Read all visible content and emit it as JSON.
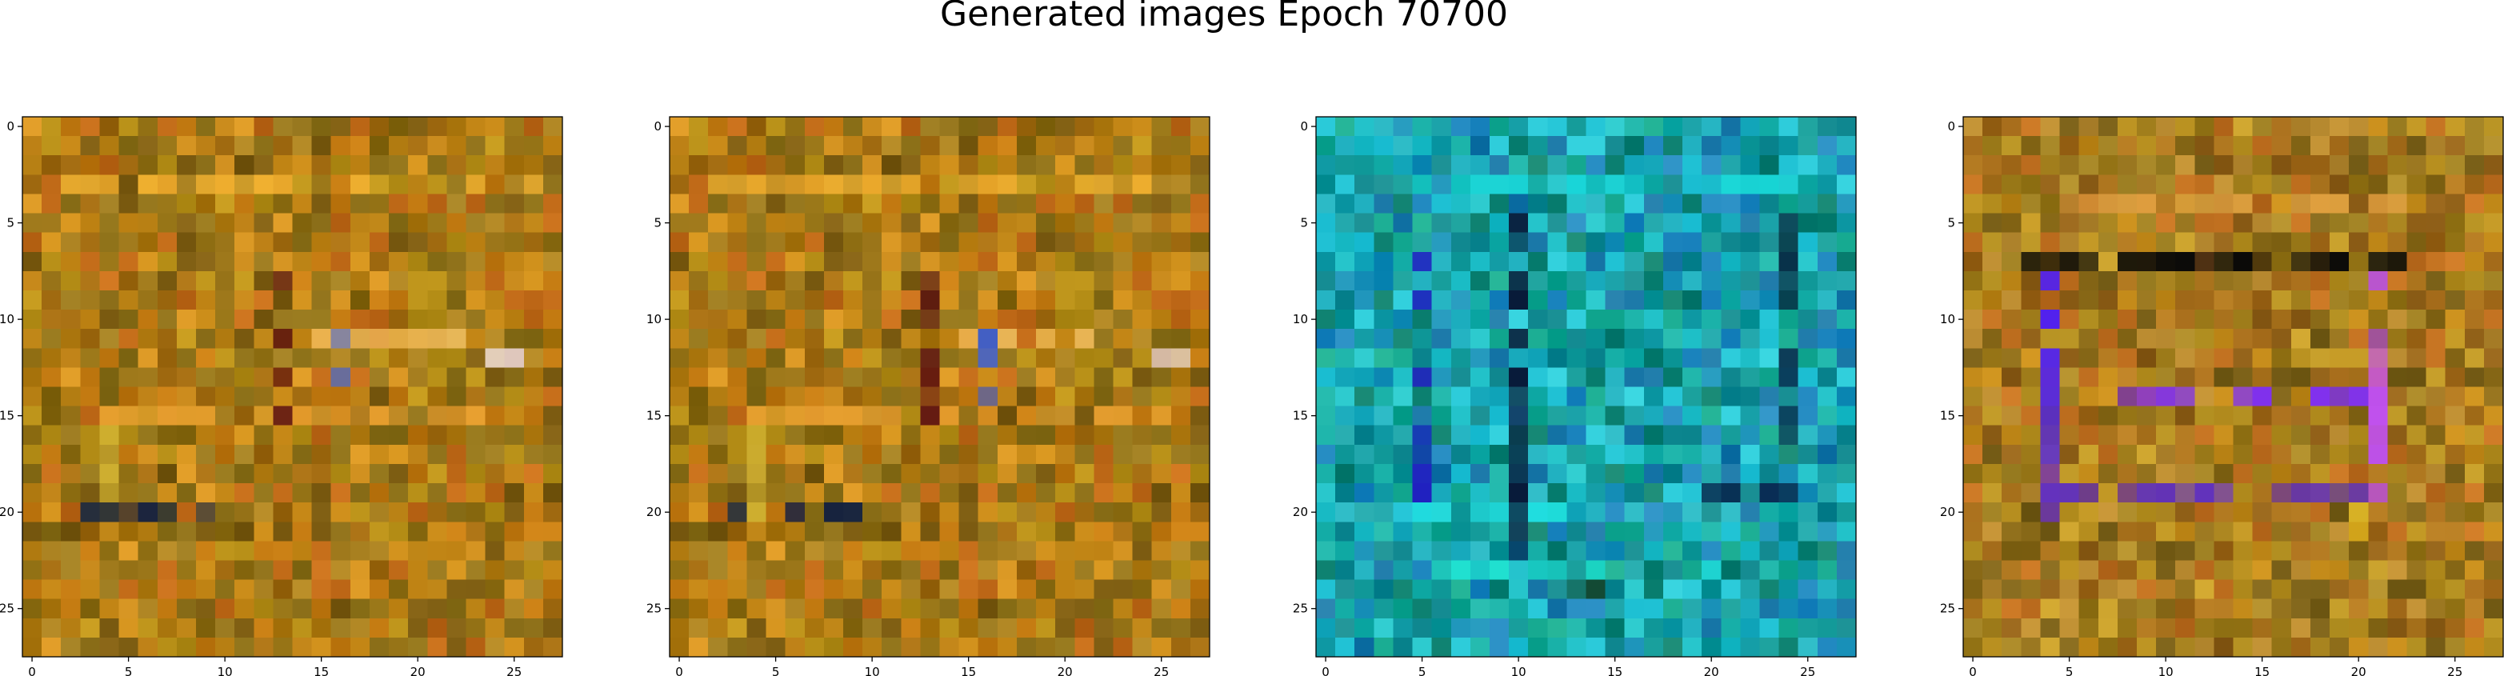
{
  "figure_title": "Generated images Epoch 70700",
  "chart_data": [
    {
      "type": "heatmap",
      "grid": [
        28,
        28
      ],
      "palette": "amber",
      "xticks": [
        0,
        5,
        10,
        15,
        20,
        25
      ],
      "yticks": [
        0,
        5,
        10,
        15,
        20,
        25
      ],
      "xlim": [
        -0.5,
        27.5
      ],
      "ylim": [
        27.5,
        -0.5
      ],
      "base_color": "#b57a10",
      "features": [
        {
          "row": 3,
          "cols": [
            2,
            26
          ],
          "color": "#f0b030"
        },
        {
          "row": 15,
          "cols": [
            4,
            25
          ],
          "color": "#e8a030"
        },
        {
          "row": 11,
          "cols": [
            15,
            22
          ],
          "color": "#f3c060"
        },
        {
          "col": 13,
          "rows": [
            8,
            15
          ],
          "color": "#5a1010"
        },
        {
          "col": 16,
          "rows": [
            11,
            14
          ],
          "color": "#4060d0"
        },
        {
          "col": 4,
          "rows": [
            16,
            20
          ],
          "color": "#d0b030"
        },
        {
          "row": 20,
          "cols": [
            3,
            9
          ],
          "color": "#102040"
        },
        {
          "row": 12,
          "cols": [
            24,
            25
          ],
          "color": "#f0e0e8"
        }
      ]
    },
    {
      "type": "heatmap",
      "grid": [
        28,
        28
      ],
      "palette": "amber",
      "xticks": [
        0,
        5,
        10,
        15,
        20,
        25
      ],
      "yticks": [
        0,
        5,
        10,
        15,
        20,
        25
      ],
      "xlim": [
        -0.5,
        27.5
      ],
      "ylim": [
        27.5,
        -0.5
      ],
      "base_color": "#b57a10",
      "features": [
        {
          "row": 3,
          "cols": [
            2,
            26
          ],
          "color": "#f0b030"
        },
        {
          "row": 15,
          "cols": [
            4,
            25
          ],
          "color": "#e8a030"
        },
        {
          "row": 11,
          "cols": [
            15,
            22
          ],
          "color": "#f3c060"
        },
        {
          "col": 13,
          "rows": [
            8,
            15
          ],
          "color": "#5a1010"
        },
        {
          "col": 16,
          "rows": [
            11,
            14
          ],
          "color": "#4060d0"
        },
        {
          "col": 4,
          "rows": [
            16,
            20
          ],
          "color": "#d0b030"
        },
        {
          "row": 20,
          "cols": [
            3,
            9
          ],
          "color": "#102040"
        },
        {
          "row": 12,
          "cols": [
            25,
            26
          ],
          "color": "#f0e0e8"
        }
      ]
    },
    {
      "type": "heatmap",
      "grid": [
        28,
        28
      ],
      "palette": "teal",
      "xticks": [
        0,
        5,
        10,
        15,
        20,
        25
      ],
      "yticks": [
        0,
        5,
        10,
        15,
        20,
        25
      ],
      "xlim": [
        -0.5,
        27.5
      ],
      "ylim": [
        27.5,
        -0.5
      ],
      "base_color": "#1a9aa0",
      "features": [
        {
          "row": 3,
          "cols": [
            5,
            24
          ],
          "color": "#18d8d8"
        },
        {
          "row": 20,
          "cols": [
            4,
            12
          ],
          "color": "#20e0e0"
        },
        {
          "row": 23,
          "cols": [
            6,
            20
          ],
          "color": "#20e0d0"
        },
        {
          "col": 10,
          "rows": [
            5,
            22
          ],
          "color": "#081838"
        },
        {
          "col": 5,
          "rows": [
            7,
            19
          ],
          "color": "#2020c0"
        },
        {
          "col": 24,
          "rows": [
            5,
            16
          ],
          "color": "#083048"
        },
        {
          "row": 19,
          "cols": [
            20,
            24
          ],
          "color": "#081848"
        },
        {
          "row": 24,
          "cols": [
            13,
            14
          ],
          "color": "#104020"
        }
      ]
    },
    {
      "type": "heatmap",
      "grid": [
        28,
        28
      ],
      "palette": "amber-violet",
      "xticks": [
        0,
        5,
        10,
        15,
        20,
        25
      ],
      "yticks": [
        0,
        5,
        10,
        15,
        20,
        25
      ],
      "xlim": [
        -0.5,
        27.5
      ],
      "ylim": [
        27.5,
        -0.5
      ],
      "base_color": "#b07820",
      "features": [
        {
          "row": 7,
          "cols": [
            3,
            22
          ],
          "color": "#080808"
        },
        {
          "row": 14,
          "cols": [
            8,
            20
          ],
          "color": "#8030f0"
        },
        {
          "col": 4,
          "rows": [
            8,
            20
          ],
          "color": "#5020f0"
        },
        {
          "col": 21,
          "rows": [
            8,
            20
          ],
          "color": "#c050f0"
        },
        {
          "row": 19,
          "cols": [
            4,
            20
          ],
          "color": "#6030c0"
        },
        {
          "col": 20,
          "rows": [
            20,
            22
          ],
          "color": "#e8c020"
        },
        {
          "row": 4,
          "cols": [
            5,
            22
          ],
          "color": "#e0a040"
        }
      ]
    }
  ]
}
